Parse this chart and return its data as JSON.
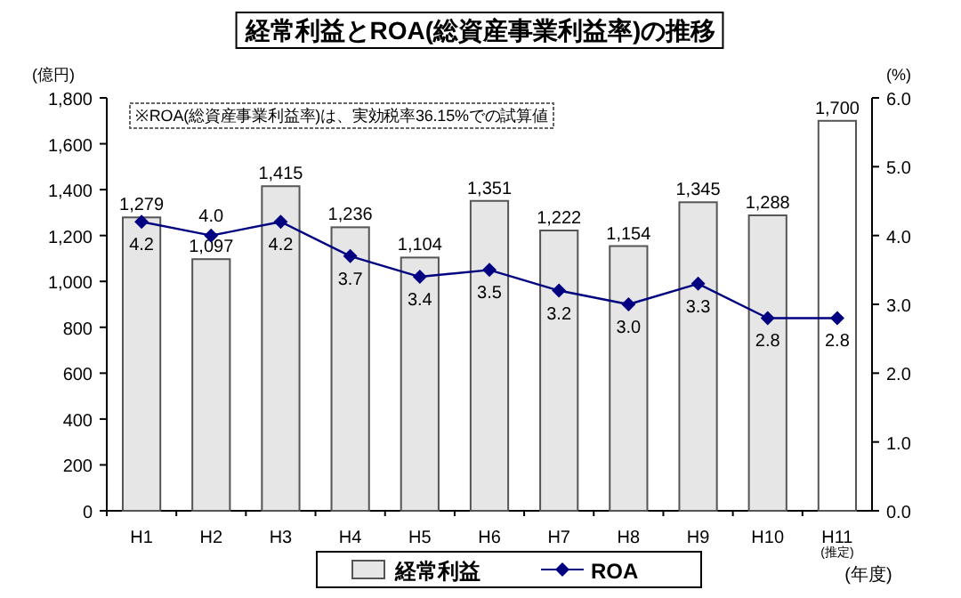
{
  "chart_data": {
    "type": "bar",
    "title": "経常利益とROA(総資産事業利益率)の推移",
    "categories": [
      "H1",
      "H2",
      "H3",
      "H4",
      "H5",
      "H6",
      "H7",
      "H8",
      "H9",
      "H10",
      "H11$_{(推定)}$"
    ],
    "series": [
      {
        "name": "経常利益",
        "colors": [
          "#e6e6e6",
          "#e6e6e6",
          "#e6e6e6",
          "#e6e6e6",
          "#e6e6e6",
          "#e6e6e6",
          "#e6e6e6",
          "#e6e6e6",
          "#e6e6e6",
          "#e6e6e6",
          "#ffffff"
        ],
        "values": [
          1279,
          1097,
          1415,
          1236,
          1104,
          1351,
          1222,
          1154,
          1345,
          1288,
          1700
        ],
        "value_labels": [
          "1,279",
          "1,097",
          "1,415",
          "1,236",
          "1,104",
          "1,351",
          "1,222",
          "1,154",
          "1,345",
          "1,288",
          "1,700"
        ]
      },
      {
        "name": "ROA",
        "type": "line",
        "axis": "y2",
        "color": "#000080",
        "marker": "diamond",
        "values": [
          4.2,
          4.0,
          4.2,
          3.7,
          3.4,
          3.5,
          3.2,
          3.0,
          3.3,
          2.8,
          2.8
        ],
        "value_labels": [
          "4.2",
          "4.0",
          "4.2",
          "3.7",
          "3.4",
          "3.5",
          "3.2",
          "3.0",
          "3.3",
          "2.8",
          "2.8"
        ]
      }
    ],
    "ylabel": "(億円)",
    "y2label": "(%)",
    "ylim": [
      0,
      1800
    ],
    "yticks": [
      {
        "value": 0,
        "label": "0"
      },
      {
        "value": 200,
        "label": "200"
      },
      {
        "value": 400,
        "label": "400"
      },
      {
        "value": 600,
        "label": "600"
      },
      {
        "value": 800,
        "label": "800"
      },
      {
        "value": 1000,
        "label": "1,000"
      },
      {
        "value": 1200,
        "label": "1,200"
      },
      {
        "value": 1400,
        "label": "1,400"
      },
      {
        "value": 1600,
        "label": "1,600"
      },
      {
        "value": 1800,
        "label": "1,800"
      }
    ],
    "y2lim": [
      0,
      6
    ],
    "y2ticks": [
      {
        "value": 0,
        "label": "0.0"
      },
      {
        "value": 1,
        "label": "1.0"
      },
      {
        "value": 2,
        "label": "2.0"
      },
      {
        "value": 3,
        "label": "3.0"
      },
      {
        "value": 4,
        "label": "4.0"
      },
      {
        "value": 5,
        "label": "5.0"
      },
      {
        "value": 6,
        "label": "6.0"
      }
    ],
    "legend": "bottom",
    "grid": false,
    "annotations": [
      "※ROA(総資産事業利益率)は、実効税率36.15%での試算値",
      "(年度)"
    ]
  }
}
